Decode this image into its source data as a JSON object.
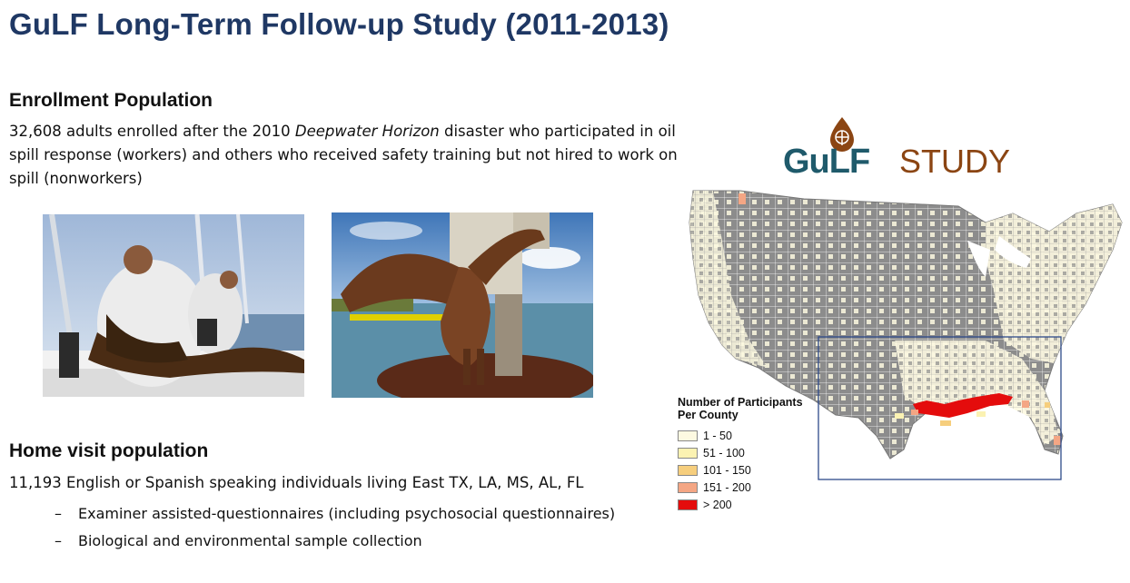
{
  "title": "GuLF Long-Term Follow-up Study (2011-2013)",
  "enrollment": {
    "heading": "Enrollment Population",
    "text_before": "32,608 adults enrolled after the 2010 ",
    "text_italic": "Deepwater Horizon",
    "text_after": " disaster who participated in oil spill response (workers) and others who received safety training but not hired to work on spill (nonworkers)"
  },
  "home_visit": {
    "heading": "Home visit population",
    "text": "11,193 English or Spanish speaking individuals living East TX, LA, MS, AL, FL",
    "bullets": [
      "Examiner assisted-questionnaires (including psychosocial questionnaires)",
      "Biological and environmental sample collection"
    ],
    "bullet_marker": "–"
  },
  "logo": {
    "part1": "GuLF",
    "part2": "STUDY",
    "colors": {
      "gulf": "#1f5a6b",
      "study": "#8b4513",
      "drop": "#8b4513"
    }
  },
  "legend": {
    "title": "Number of Participants Per County",
    "items": [
      {
        "label": "1 - 50",
        "color": "#fdf9e1"
      },
      {
        "label": "51 - 100",
        "color": "#fbf2b2"
      },
      {
        "label": "101 - 150",
        "color": "#f6ce7d"
      },
      {
        "label": "151 - 200",
        "color": "#f4a684"
      },
      {
        "label": "> 200",
        "color": "#e40c0c"
      }
    ]
  },
  "colors": {
    "title": "#1f3864",
    "map_gray": "#8c8c8c",
    "inset_box": "#2e4a8a"
  }
}
